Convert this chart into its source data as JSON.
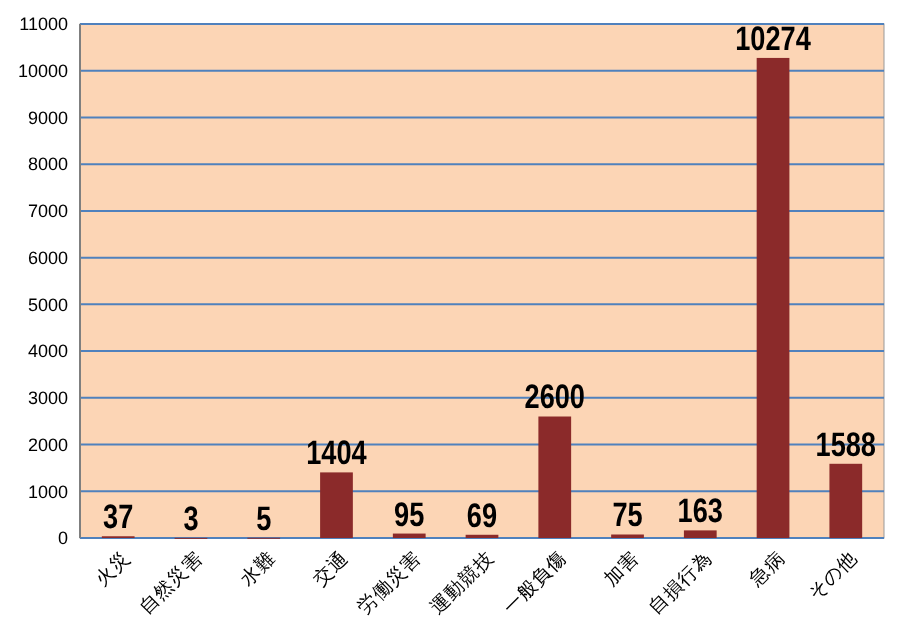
{
  "chart_data": {
    "type": "bar",
    "categories": [
      "火災",
      "自然災害",
      "水難",
      "交通",
      "労働災害",
      "運動競技",
      "一般負傷",
      "加害",
      "自損行為",
      "急病",
      "その他"
    ],
    "values": [
      37,
      3,
      5,
      1404,
      95,
      69,
      2600,
      75,
      163,
      10274,
      1588
    ],
    "color": "#8b2a2a",
    "ylim": [
      0,
      11000
    ],
    "yticks": [
      0,
      1000,
      2000,
      3000,
      4000,
      5000,
      6000,
      7000,
      8000,
      9000,
      10000,
      11000
    ],
    "grid": "y",
    "data_labels": true
  }
}
